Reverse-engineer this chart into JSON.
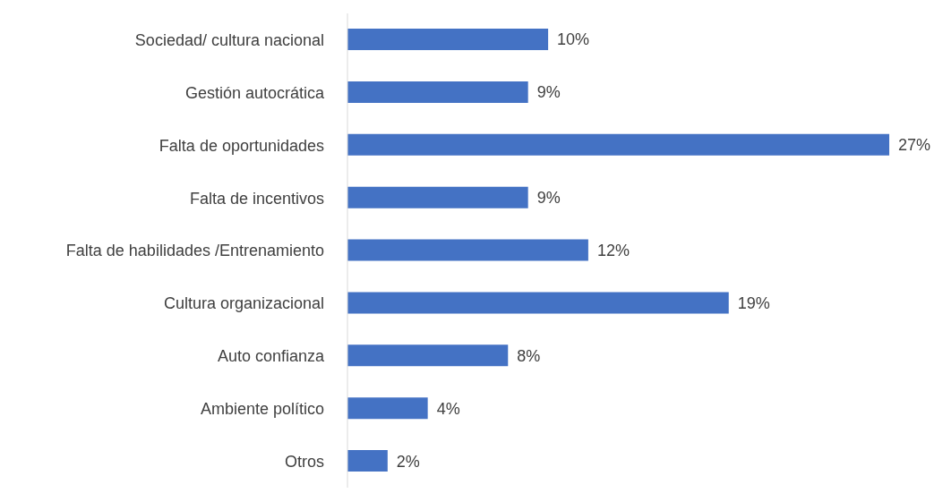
{
  "chart_data": {
    "type": "bar",
    "orientation": "horizontal",
    "categories": [
      "Sociedad/ cultura nacional",
      "Gestión autocrática",
      "Falta de oportunidades",
      "Falta de incentivos",
      "Falta de habilidades /Entrenamiento",
      "Cultura organizacional",
      "Auto confianza",
      "Ambiente político",
      "Otros"
    ],
    "values": [
      10,
      9,
      27,
      9,
      12,
      19,
      8,
      4,
      2
    ],
    "value_labels": [
      "10%",
      "9%",
      "27%",
      "9%",
      "12%",
      "19%",
      "8%",
      "4%",
      "2%"
    ],
    "color": "#4472c4"
  }
}
